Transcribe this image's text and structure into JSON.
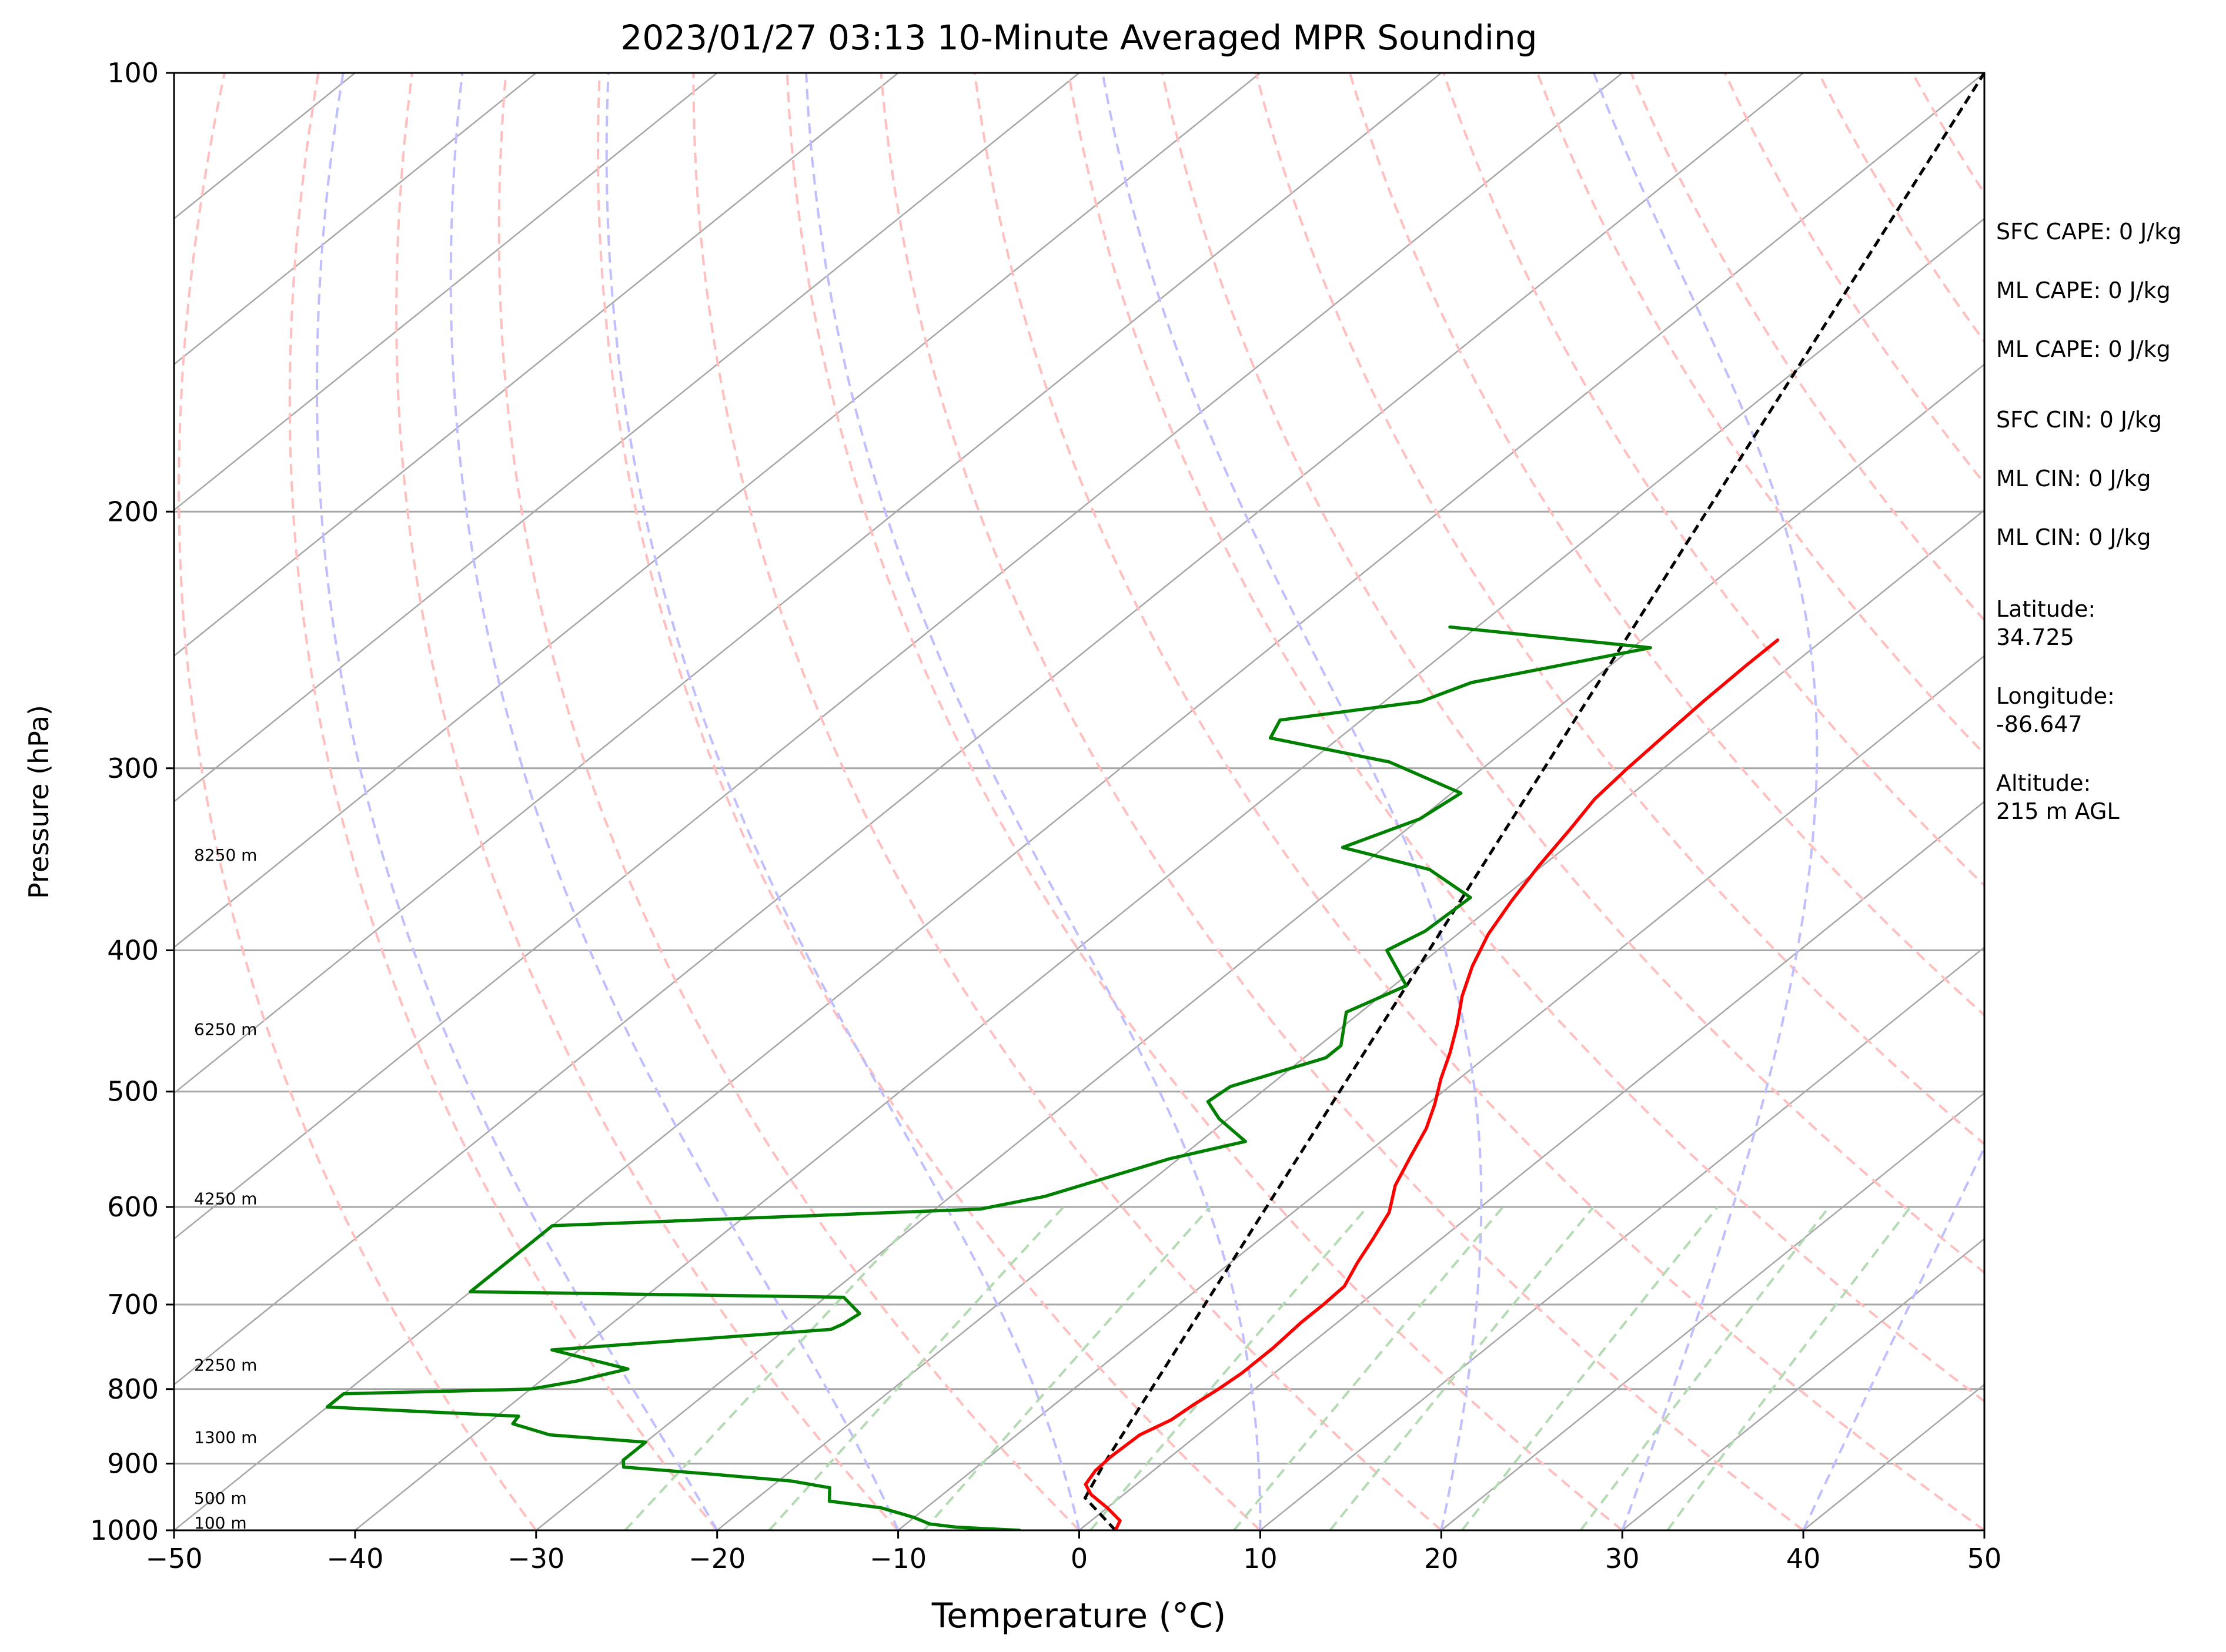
{
  "chart_data": {
    "type": "line",
    "chart_kind": "skew-T log-p sounding",
    "title": "2023/01/27 03:13 10-Minute Averaged MPR Sounding",
    "xlabel": "Temperature (°C)",
    "ylabel": "Pressure (hPa)",
    "xlim": [
      -50,
      50
    ],
    "ylim": [
      1000,
      100
    ],
    "yscale": "log",
    "x_ticks": [
      -50,
      -40,
      -30,
      -20,
      -10,
      0,
      10,
      20,
      30,
      40,
      50
    ],
    "x_tick_labels": [
      "−50",
      "−40",
      "−30",
      "−20",
      "−10",
      "0",
      "10",
      "20",
      "30",
      "40",
      "50"
    ],
    "y_ticks": [
      1000,
      900,
      800,
      700,
      600,
      500,
      400,
      300,
      200,
      100
    ],
    "y_tick_labels": [
      "1000",
      "900",
      "800",
      "700",
      "600",
      "500",
      "400",
      "300",
      "200",
      "100"
    ],
    "horizontal_grid": [
      100,
      200,
      300,
      400,
      500,
      600,
      700,
      800,
      900,
      1000
    ],
    "isotherms": [
      -150,
      -140,
      -130,
      -120,
      -110,
      -100,
      -90,
      -80,
      -70,
      -60,
      -50,
      -40,
      -30,
      -20,
      -10,
      0,
      10,
      20,
      30,
      40,
      50
    ],
    "dry_adiabats_C": [
      -30,
      -20,
      -10,
      0,
      10,
      20,
      30,
      40,
      50,
      60,
      70,
      80,
      90,
      100,
      110,
      120,
      130,
      140,
      150
    ],
    "moist_adiabats_C": [
      -20,
      -10,
      0,
      10,
      20,
      30,
      40,
      50,
      60
    ],
    "mixing_ratio_lines_gkg": [
      0.5,
      1,
      2,
      4,
      7,
      10,
      16,
      24,
      32
    ],
    "mixing_ratio_top_hPa": 600,
    "colors": {
      "temperature": "#ff0000",
      "dewpoint": "#008000",
      "parcel": "#000000",
      "isotherm": "#a6a6a6",
      "dry_adiabat": "#ffbfbf",
      "moist_adiabat": "#bfbfff",
      "mixing_ratio": "#b3dab3"
    },
    "series": [
      {
        "role": "temperature",
        "points": [
          [
            1000,
            2.0
          ],
          [
            985,
            1.6
          ],
          [
            965,
            0.0
          ],
          [
            945,
            -1.8
          ],
          [
            930,
            -2.8
          ],
          [
            910,
            -3.2
          ],
          [
            890,
            -3.3
          ],
          [
            860,
            -3.2
          ],
          [
            840,
            -2.5
          ],
          [
            820,
            -2.3
          ],
          [
            800,
            -2.0
          ],
          [
            780,
            -1.8
          ],
          [
            750,
            -1.8
          ],
          [
            720,
            -2.0
          ],
          [
            700,
            -2.0
          ],
          [
            680,
            -2.1
          ],
          [
            655,
            -3.0
          ],
          [
            630,
            -3.8
          ],
          [
            605,
            -4.7
          ],
          [
            580,
            -6.2
          ],
          [
            555,
            -7.3
          ],
          [
            530,
            -8.4
          ],
          [
            510,
            -9.6
          ],
          [
            490,
            -11.0
          ],
          [
            470,
            -12.3
          ],
          [
            450,
            -13.8
          ],
          [
            430,
            -15.5
          ],
          [
            410,
            -17.0
          ],
          [
            390,
            -18.3
          ],
          [
            370,
            -19.3
          ],
          [
            350,
            -20.2
          ],
          [
            330,
            -21.0
          ],
          [
            315,
            -21.7
          ],
          [
            300,
            -22.0
          ],
          [
            285,
            -22.2
          ],
          [
            270,
            -22.4
          ],
          [
            255,
            -22.5
          ],
          [
            245,
            -22.5
          ]
        ]
      },
      {
        "role": "dewpoint",
        "points": [
          [
            1000,
            -3.3
          ],
          [
            995,
            -7.0
          ],
          [
            990,
            -8.7
          ],
          [
            980,
            -10.0
          ],
          [
            965,
            -12.5
          ],
          [
            955,
            -15.8
          ],
          [
            935,
            -16.7
          ],
          [
            925,
            -19.3
          ],
          [
            915,
            -24.2
          ],
          [
            905,
            -29.5
          ],
          [
            895,
            -30.0
          ],
          [
            870,
            -30.0
          ],
          [
            860,
            -35.8
          ],
          [
            845,
            -38.6
          ],
          [
            835,
            -38.8
          ],
          [
            823,
            -50.0
          ],
          [
            806,
            -50.0
          ],
          [
            800,
            -40.0
          ],
          [
            790,
            -38.0
          ],
          [
            775,
            -36.0
          ],
          [
            752,
            -41.5
          ],
          [
            728,
            -27.5
          ],
          [
            722,
            -27.2
          ],
          [
            710,
            -27.0
          ],
          [
            692,
            -29.0
          ],
          [
            686,
            -50.0
          ],
          [
            618,
            -50.0
          ],
          [
            602,
            -27.5
          ],
          [
            590,
            -24.8
          ],
          [
            570,
            -22.3
          ],
          [
            556,
            -20.5
          ],
          [
            541,
            -17.5
          ],
          [
            522,
            -20.5
          ],
          [
            508,
            -22.3
          ],
          [
            496,
            -22.1
          ],
          [
            474,
            -18.8
          ],
          [
            465,
            -18.8
          ],
          [
            441,
            -20.8
          ],
          [
            423,
            -19.3
          ],
          [
            400,
            -22.8
          ],
          [
            388,
            -22.0
          ],
          [
            368,
            -21.8
          ],
          [
            352,
            -26.0
          ],
          [
            340,
            -32.3
          ],
          [
            325,
            -30.0
          ],
          [
            312,
            -29.5
          ],
          [
            297,
            -35.6
          ],
          [
            286,
            -43.8
          ],
          [
            278,
            -44.5
          ],
          [
            270,
            -38.0
          ],
          [
            262,
            -36.5
          ],
          [
            248,
            -29.0
          ],
          [
            240,
            -41.5
          ]
        ]
      }
    ],
    "parcel_path": [
      [
        1000,
        2.0
      ],
      [
        950,
        -1.9
      ],
      [
        900,
        -3.2
      ],
      [
        100,
        -50.0
      ]
    ],
    "height_annotations": [
      {
        "label": "100 m",
        "pressure": 988
      },
      {
        "label": "500 m",
        "pressure": 950
      },
      {
        "label": "1300 m",
        "pressure": 863
      },
      {
        "label": "2250 m",
        "pressure": 770
      },
      {
        "label": "4250 m",
        "pressure": 592
      },
      {
        "label": "6250 m",
        "pressure": 453
      },
      {
        "label": "8250 m",
        "pressure": 344
      }
    ]
  },
  "stats": {
    "sfc_cape": "SFC CAPE: 0 J/kg",
    "ml_cape_1": "ML CAPE: 0 J/kg",
    "ml_cape_2": "ML CAPE: 0 J/kg",
    "sfc_cin": "SFC CIN: 0 J/kg",
    "ml_cin_1": "ML CIN: 0 J/kg",
    "ml_cin_2": "ML CIN: 0 J/kg",
    "latitude_label": "Latitude:",
    "latitude_value": "34.725",
    "longitude_label": "Longitude:",
    "longitude_value": "-86.647",
    "altitude_label": "Altitude:",
    "altitude_value": "215 m AGL"
  }
}
